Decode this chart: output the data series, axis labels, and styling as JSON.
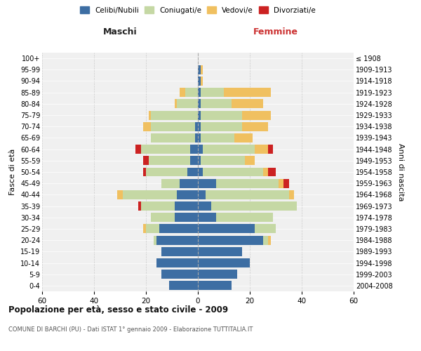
{
  "age_groups": [
    "0-4",
    "5-9",
    "10-14",
    "15-19",
    "20-24",
    "25-29",
    "30-34",
    "35-39",
    "40-44",
    "45-49",
    "50-54",
    "55-59",
    "60-64",
    "65-69",
    "70-74",
    "75-79",
    "80-84",
    "85-89",
    "90-94",
    "95-99",
    "100+"
  ],
  "birth_years": [
    "2004-2008",
    "1999-2003",
    "1994-1998",
    "1989-1993",
    "1984-1988",
    "1979-1983",
    "1974-1978",
    "1969-1973",
    "1964-1968",
    "1959-1963",
    "1954-1958",
    "1949-1953",
    "1944-1948",
    "1939-1943",
    "1934-1938",
    "1929-1933",
    "1924-1928",
    "1919-1923",
    "1914-1918",
    "1909-1913",
    "≤ 1908"
  ],
  "males": {
    "celibi": [
      11,
      14,
      16,
      14,
      16,
      15,
      9,
      9,
      8,
      7,
      4,
      3,
      3,
      1,
      1,
      0,
      0,
      0,
      0,
      0,
      0
    ],
    "coniugati": [
      0,
      0,
      0,
      0,
      1,
      5,
      9,
      13,
      21,
      7,
      16,
      16,
      19,
      17,
      17,
      18,
      8,
      5,
      0,
      0,
      0
    ],
    "vedovi": [
      0,
      0,
      0,
      0,
      0,
      1,
      0,
      0,
      2,
      0,
      0,
      0,
      0,
      0,
      3,
      1,
      1,
      2,
      0,
      0,
      0
    ],
    "divorziati": [
      0,
      0,
      0,
      0,
      0,
      0,
      0,
      1,
      0,
      0,
      1,
      2,
      2,
      0,
      0,
      0,
      0,
      0,
      0,
      0,
      0
    ]
  },
  "females": {
    "nubili": [
      13,
      15,
      20,
      17,
      25,
      22,
      7,
      5,
      3,
      7,
      2,
      1,
      2,
      1,
      1,
      1,
      1,
      1,
      1,
      1,
      0
    ],
    "coniugate": [
      0,
      0,
      0,
      0,
      2,
      8,
      22,
      33,
      32,
      24,
      23,
      17,
      20,
      13,
      16,
      16,
      12,
      9,
      0,
      0,
      0
    ],
    "vedove": [
      0,
      0,
      0,
      0,
      1,
      0,
      0,
      0,
      2,
      2,
      2,
      4,
      5,
      7,
      10,
      11,
      12,
      18,
      1,
      1,
      0
    ],
    "divorziate": [
      0,
      0,
      0,
      0,
      0,
      0,
      0,
      0,
      0,
      2,
      3,
      0,
      2,
      0,
      0,
      0,
      0,
      0,
      0,
      0,
      0
    ]
  },
  "colors": {
    "celibi": "#3d6ea3",
    "coniugati": "#c5d8a4",
    "vedovi": "#f0c060",
    "divorziati": "#cc2222"
  },
  "title": "Popolazione per età, sesso e stato civile - 2009",
  "subtitle": "COMUNE DI BARCHI (PU) - Dati ISTAT 1° gennaio 2009 - Elaborazione TUTTITALIA.IT",
  "xlabel_left": "Maschi",
  "xlabel_right": "Femmine",
  "ylabel_left": "Fasce di età",
  "ylabel_right": "Anni di nascita",
  "xlim": 60,
  "bg_color": "#f0f0f0"
}
